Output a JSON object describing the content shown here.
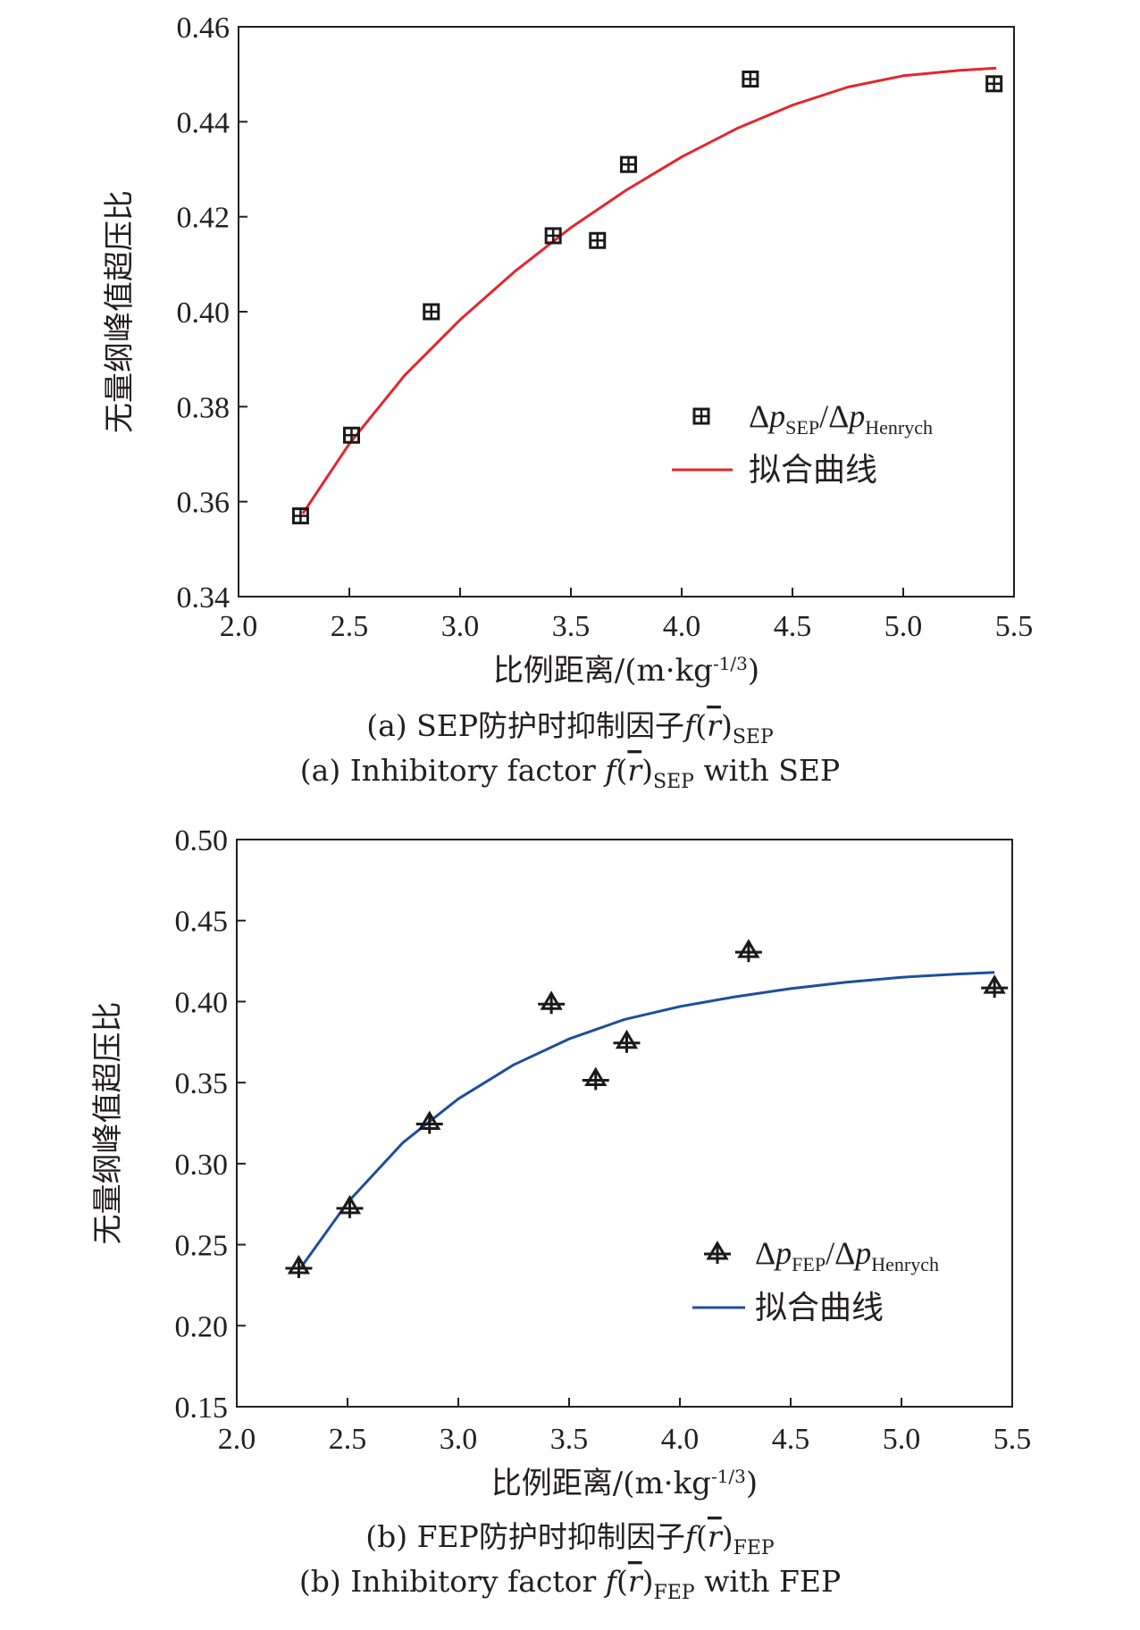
{
  "chart_data": [
    {
      "type": "scatter",
      "panel": "a",
      "xlabel": "比例距离/(m·kg-1/3)",
      "ylabel": "无量纲峰值超压比",
      "xlim": [
        2.0,
        5.5
      ],
      "ylim": [
        0.34,
        0.46
      ],
      "xticks": [
        "2.0",
        "2.5",
        "3.0",
        "3.5",
        "4.0",
        "4.5",
        "5.0",
        "5.5"
      ],
      "yticks": [
        "0.34",
        "0.36",
        "0.38",
        "0.40",
        "0.42",
        "0.44",
        "0.46"
      ],
      "legend": {
        "position": "lower-right",
        "scatter_label": "Δp_SEP/Δp_Henrych",
        "line_label": "拟合曲线"
      },
      "series": [
        {
          "name": "Δp_SEP/Δp_Henrych",
          "kind": "scatter",
          "marker": "boxed-plus",
          "color": "#1a1a1a",
          "x": [
            2.28,
            2.51,
            2.87,
            3.42,
            3.62,
            3.76,
            4.31,
            5.41
          ],
          "y": [
            0.357,
            0.374,
            0.4,
            0.416,
            0.415,
            0.431,
            0.449,
            0.448
          ]
        },
        {
          "name": "拟合曲线",
          "kind": "line",
          "color": "#e3262d",
          "x": [
            2.29,
            2.5,
            2.75,
            3.0,
            3.25,
            3.5,
            3.75,
            4.0,
            4.25,
            4.5,
            4.75,
            5.0,
            5.25,
            5.42
          ],
          "y": [
            0.3575,
            0.3722,
            0.3866,
            0.3983,
            0.4086,
            0.4177,
            0.4256,
            0.4326,
            0.4386,
            0.4435,
            0.4473,
            0.4497,
            0.4508,
            0.4513
          ]
        }
      ],
      "caption_cn": {
        "prefix": "(a) SEP防护时抑制因子",
        "func": "f",
        "arg": "r",
        "sub": "SEP"
      },
      "caption_en": {
        "prefix": "(a) Inhibitory factor ",
        "func": "f",
        "arg": "r",
        "sub": "SEP",
        "suffix": " with SEP"
      }
    },
    {
      "type": "scatter",
      "panel": "b",
      "xlabel": "比例距离/(m·kg-1/3)",
      "ylabel": "无量纲峰值超压比",
      "xlim": [
        2.0,
        5.5
      ],
      "ylim": [
        0.15,
        0.5
      ],
      "xticks": [
        "2.0",
        "2.5",
        "3.0",
        "3.5",
        "4.0",
        "4.5",
        "5.0",
        "5.5"
      ],
      "yticks": [
        "0.15",
        "0.20",
        "0.25",
        "0.30",
        "0.35",
        "0.40",
        "0.45",
        "0.50"
      ],
      "legend": {
        "position": "lower-right",
        "scatter_label": "Δp_FEP/Δp_Henrych",
        "line_label": "拟合曲线"
      },
      "series": [
        {
          "name": "Δp_FEP/Δp_Henrych",
          "kind": "scatter",
          "marker": "triangle-plus",
          "color": "#1a1a1a",
          "x": [
            2.28,
            2.51,
            2.87,
            3.42,
            3.62,
            3.76,
            4.31,
            5.42
          ],
          "y": [
            0.236,
            0.273,
            0.325,
            0.399,
            0.352,
            0.375,
            0.431,
            0.409
          ]
        },
        {
          "name": "拟合曲线",
          "kind": "line",
          "color": "#1f4e9c",
          "x": [
            2.29,
            2.5,
            2.75,
            3.0,
            3.25,
            3.5,
            3.75,
            4.0,
            4.25,
            4.5,
            4.75,
            5.0,
            5.25,
            5.42
          ],
          "y": [
            0.236,
            0.276,
            0.313,
            0.34,
            0.361,
            0.377,
            0.389,
            0.397,
            0.403,
            0.408,
            0.412,
            0.415,
            0.417,
            0.418
          ]
        }
      ],
      "caption_cn": {
        "prefix": "(b) FEP防护时抑制因子",
        "func": "f",
        "arg": "r",
        "sub": "FEP"
      },
      "caption_en": {
        "prefix": "(b) Inhibitory factor ",
        "func": "f",
        "arg": "r",
        "sub": "FEP",
        "suffix": " with FEP"
      }
    }
  ]
}
